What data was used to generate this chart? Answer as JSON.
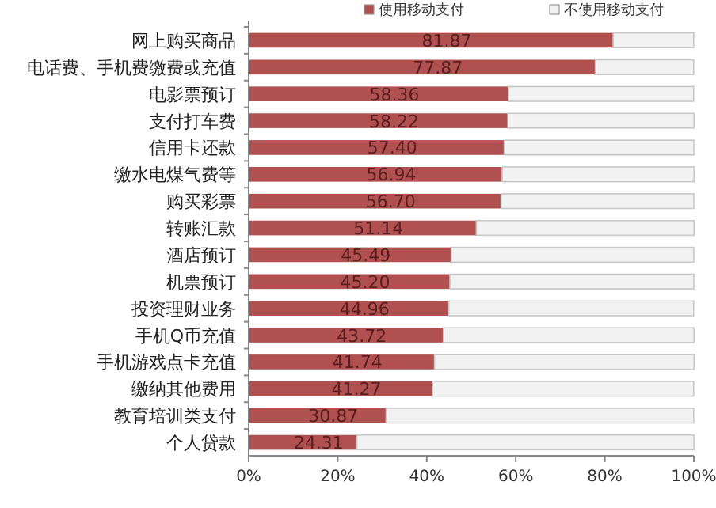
{
  "chart_data": {
    "type": "bar",
    "orientation": "horizontal",
    "stacked": true,
    "categories": [
      "网上购买商品",
      "电话费、手机费缴费或充值",
      "电影票预订",
      "支付打车费",
      "信用卡还款",
      "缴水电煤气费等",
      "购买彩票",
      "转账汇款",
      "酒店预订",
      "机票预订",
      "投资理财业务",
      "手机Q币充值",
      "手机游戏点卡充值",
      "缴纳其他费用",
      "教育培训类支付",
      "个人贷款"
    ],
    "series": [
      {
        "name": "使用移动支付",
        "color": "#b05050",
        "values": [
          81.87,
          77.87,
          58.36,
          58.22,
          57.4,
          56.94,
          56.7,
          51.14,
          45.49,
          45.2,
          44.96,
          43.72,
          41.74,
          41.27,
          30.87,
          24.31
        ],
        "value_labels": [
          "81.87",
          "77.87",
          "58.36",
          "58.22",
          "57.40",
          "56.94",
          "56.70",
          "51.14",
          "45.49",
          "45.20",
          "44.96",
          "43.72",
          "41.74",
          "41.27",
          "30.87",
          "24.31"
        ]
      },
      {
        "name": "不使用移动支付",
        "color": "#f2f2f2",
        "values": [
          18.1,
          22.1,
          41.6,
          41.8,
          42.6,
          43.1,
          43.3,
          48.9,
          54.5,
          54.8,
          55.0,
          56.3,
          58.3,
          58.7,
          69.1,
          75.7
        ]
      }
    ],
    "xlim": [
      0,
      100
    ],
    "xticks": [
      {
        "value": 0,
        "label": "0%"
      },
      {
        "value": 20,
        "label": "20%"
      },
      {
        "value": 40,
        "label": "40%"
      },
      {
        "value": 60,
        "label": "60%"
      },
      {
        "value": 80,
        "label": "80%"
      },
      {
        "value": 100,
        "label": "100%"
      }
    ],
    "legend": "top",
    "grid": false
  }
}
